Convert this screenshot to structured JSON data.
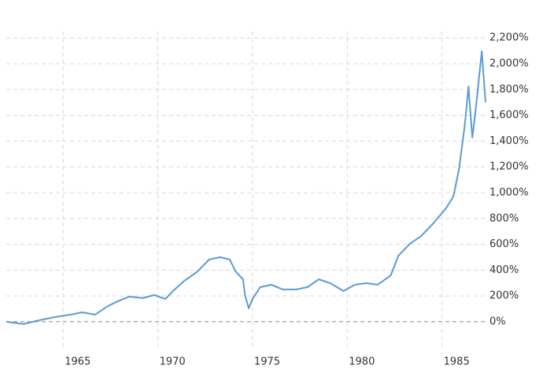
{
  "chart_data": {
    "type": "line",
    "x": [
      1962.0,
      1962.9,
      1963.75,
      1964.6,
      1965.4,
      1966.0,
      1966.7,
      1967.3,
      1967.9,
      1968.5,
      1969.2,
      1969.8,
      1970.4,
      1970.8,
      1971.4,
      1972.1,
      1972.7,
      1973.3,
      1973.8,
      1974.1,
      1974.5,
      1974.6,
      1974.8,
      1975.0,
      1975.4,
      1976.0,
      1976.6,
      1977.3,
      1977.9,
      1978.5,
      1979.1,
      1979.8,
      1980.4,
      1981.0,
      1981.6,
      1982.3,
      1982.7,
      1983.3,
      1983.9,
      1984.5,
      1985.2,
      1985.6,
      1985.9,
      1986.2,
      1986.4,
      1986.6,
      1986.8,
      1987.1,
      1987.3
    ],
    "series": [
      {
        "color": "#5b9bd5",
        "values": [
          0,
          -18,
          12,
          37,
          55,
          73,
          55,
          116,
          160,
          195,
          183,
          207,
          177,
          238,
          317,
          390,
          482,
          500,
          482,
          390,
          329,
          207,
          104,
          177,
          268,
          287,
          250,
          250,
          268,
          329,
          299,
          238,
          287,
          299,
          287,
          360,
          512,
          604,
          665,
          756,
          878,
          970,
          1183,
          1518,
          1823,
          1427,
          1671,
          2098,
          1701
        ]
      }
    ],
    "xlim": [
      1962,
      1987.3
    ],
    "xticks": [
      1965,
      1970,
      1975,
      1980,
      1985
    ],
    "ylim": [
      -220,
      2250
    ],
    "yticks": [
      {
        "value": 0,
        "label": "0%"
      },
      {
        "value": 200,
        "label": "200%"
      },
      {
        "value": 400,
        "label": "400%"
      },
      {
        "value": 600,
        "label": "600%"
      },
      {
        "value": 800,
        "label": "800%"
      },
      {
        "value": 1000,
        "label": "1,000%"
      },
      {
        "value": 1200,
        "label": "1,200%"
      },
      {
        "value": 1400,
        "label": "1,400%"
      },
      {
        "value": 1600,
        "label": "1,600%"
      },
      {
        "value": 1800,
        "label": "1,800%"
      },
      {
        "value": 2000,
        "label": "2,000%"
      },
      {
        "value": 2200,
        "label": "2,200%"
      }
    ],
    "grid": true
  }
}
